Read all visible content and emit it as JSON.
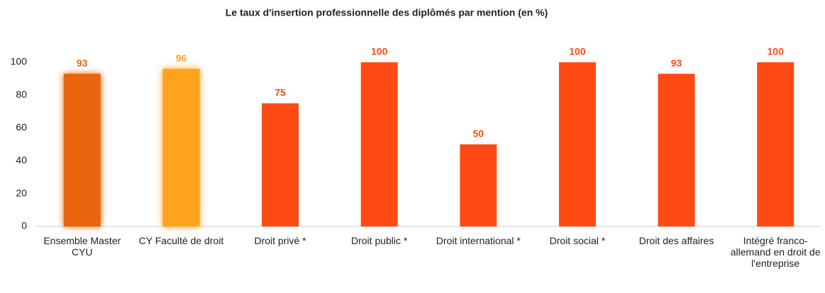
{
  "chart_data": {
    "type": "bar",
    "title": "Le taux d'insertion professionnelle des diplômés par mention (en %)",
    "categories": [
      "Ensemble Master CYU",
      "CY Faculté de droit",
      "Droit privé *",
      "Droit public *",
      "Droit international *",
      "Droit social *",
      "Droit des affaires",
      "Intégré franco-allemand en droit de l'entreprise"
    ],
    "values": [
      93,
      96,
      75,
      100,
      50,
      100,
      93,
      100
    ],
    "colors": [
      "#e8650f",
      "#ffa21f",
      "#ff4a14",
      "#ff4a14",
      "#ff4a14",
      "#ff4a14",
      "#ff4a14",
      "#ff4a14"
    ],
    "highlight": [
      0,
      1
    ],
    "ylim": [
      0,
      100
    ],
    "yticks": [
      0,
      20,
      40,
      60,
      80,
      100
    ],
    "grid": false
  }
}
